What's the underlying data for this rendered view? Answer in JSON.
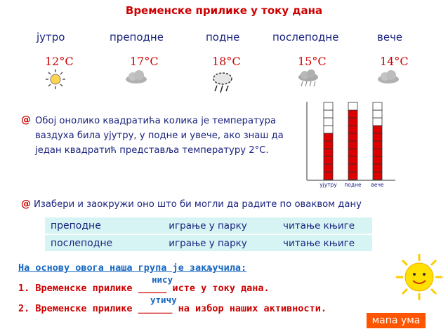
{
  "title": "Временске прилике у току дана",
  "periods": [
    {
      "label": "јутро",
      "temp": "12°C",
      "icon": "sun-icon"
    },
    {
      "label": "преподне",
      "temp": "17°C",
      "icon": "cloud-icon"
    },
    {
      "label": "подне",
      "temp": "18°C",
      "icon": "storm-cloud-icon"
    },
    {
      "label": "послеподне",
      "temp": "15°C",
      "icon": "rain-cloud-icon"
    },
    {
      "label": "вече",
      "temp": "14°C",
      "icon": "cloud-icon"
    }
  ],
  "bullet_char": "@",
  "instruction1": "Обој онолико квадратића колика је температура ваздуха била ујутру, у подне и увече, ако знаш да један квадратић представља температуру 2°C.",
  "chart_data": {
    "type": "bar",
    "categories": [
      "ујутру",
      "подне",
      "вече"
    ],
    "values": [
      12,
      18,
      14
    ],
    "unit_per_square": 2,
    "total_squares": 10,
    "bar_color": "#dd0000"
  },
  "instruction2": "Изабери и заокружи оно што би могли да радите по оваквом дану",
  "activities": [
    {
      "period": "преподне",
      "option1": "играње у парку",
      "option2": "читање књиге"
    },
    {
      "period": "послеподне",
      "option1": "играње у парку",
      "option2": "читање књиге"
    }
  ],
  "conclusion": {
    "heading": "На основу овога наша група је закључила:",
    "line1_prefix": "1. Временске прилике",
    "line1_blank": "_____",
    "line1_suffix": "исте у току дана.",
    "line1_answer": "нису",
    "line2_prefix": "2. Временске прилике",
    "line2_blank": "______",
    "line2_suffix": "на избор наших активности.",
    "line2_answer": "утичу"
  },
  "mind_map_button": "мапа ума"
}
